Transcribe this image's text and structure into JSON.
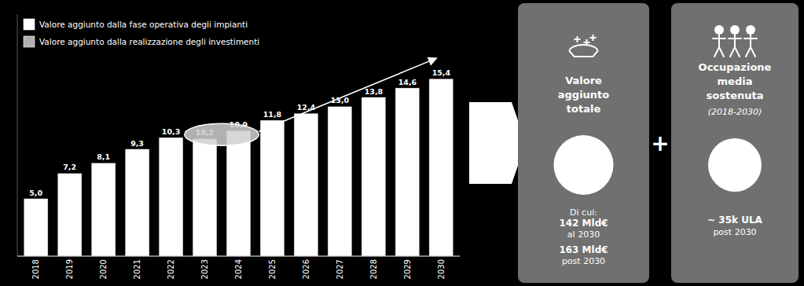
{
  "chart_data": {
    "type": "bar",
    "categories": [
      "2018",
      "2019",
      "2020",
      "2021",
      "2022",
      "2023",
      "2024",
      "2025",
      "2026",
      "2027",
      "2028",
      "2029",
      "2030"
    ],
    "series": [
      {
        "name": "Valore aggiunto dalla fase operativa degli impianti",
        "color": "#ffffff",
        "values": [
          5.0,
          7.2,
          8.1,
          9.3,
          10.3,
          10.2,
          10.9,
          11.8,
          12.4,
          13.0,
          13.8,
          14.6,
          15.4
        ],
        "value_labels": [
          "5,0",
          "7,2",
          "8,1",
          "9,3",
          "10,3",
          "10,2",
          "10,9",
          "11,8",
          "12,4",
          "13,0",
          "13,8",
          "14,6",
          "15,4"
        ]
      },
      {
        "name": "Valore aggiunto dalla realizzazione degli investimenti",
        "color": "#b0b0b0",
        "values": [
          null,
          null,
          null,
          null,
          null,
          null,
          null,
          null,
          null,
          null,
          null,
          null,
          null
        ]
      }
    ],
    "ylim": [
      0,
      21
    ],
    "yticks": [],
    "data_labels": true,
    "tick_labels": "x",
    "legend": "upper left",
    "annotations": [
      "Valore\naggiunto\ntotale",
      "Di cui:",
      "142 Mld€",
      "al 2030",
      "163 Mld€",
      "post 2030",
      "+",
      "Occupazione\nmedia\nsostenuta",
      "(2018-2030)",
      "~ 35k ULA",
      "post 2030"
    ]
  }
}
